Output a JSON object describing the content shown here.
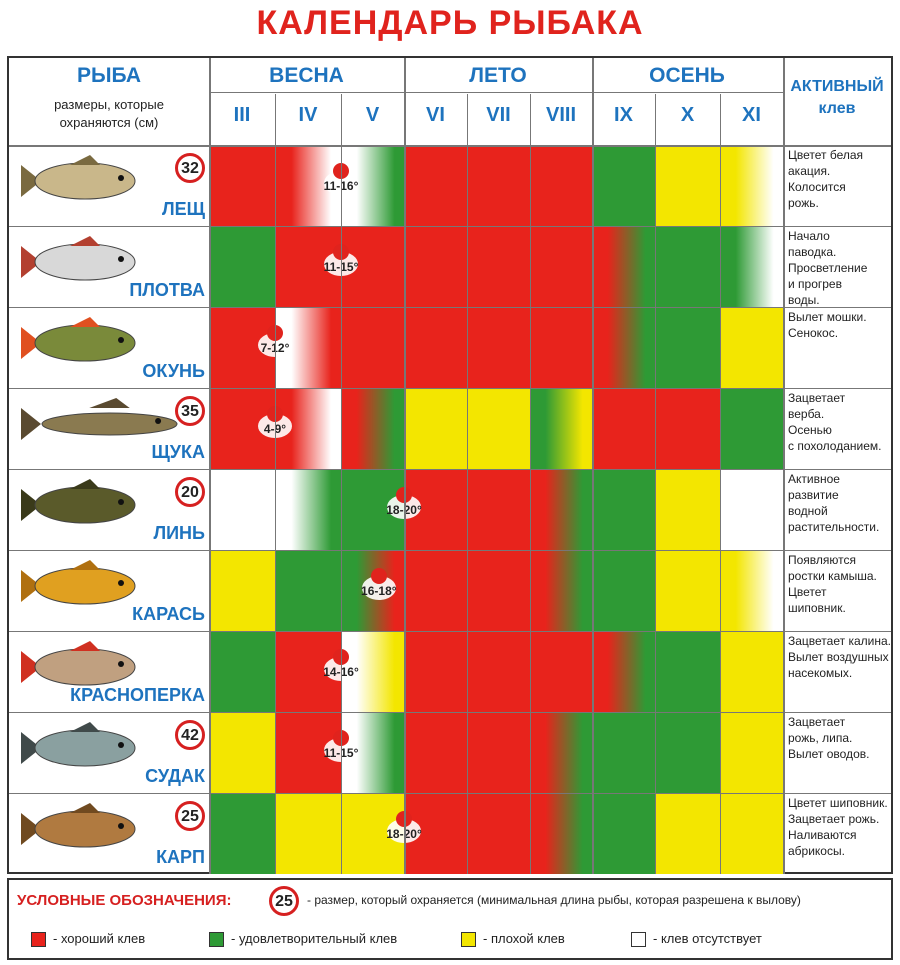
{
  "title": "КАЛЕНДАРЬ РЫБАКА",
  "header": {
    "fish": "РЫБА",
    "sizes": "размеры, которые охраняются (см)",
    "active": "АКТИВНЫЙ клев",
    "seasons": [
      "ВЕСНА",
      "ЛЕТО",
      "ОСЕНЬ"
    ],
    "months": [
      "III",
      "IV",
      "V",
      "VI",
      "VII",
      "VIII",
      "IX",
      "X",
      "XI"
    ]
  },
  "colors": {
    "good": "#e8231c",
    "satisfactory": "#2e9a35",
    "poor": "#f3e600",
    "none": "#ffffff"
  },
  "fish": [
    {
      "name": "ЛЕЩ",
      "limit": "32",
      "temp": "11-16°",
      "marker_month": 2.0,
      "icon": "bream-icon",
      "bite": [
        "good",
        "good>none",
        "none>satisfactory",
        "good",
        "good",
        "good>good",
        "satisfactory",
        "poor",
        "poor>none"
      ],
      "note": "Цветет белая\nакация.\nКолосится\nрожь."
    },
    {
      "name": "ПЛОТВА",
      "limit": "",
      "temp": "11-15°",
      "marker_month": 2.0,
      "icon": "roach-icon",
      "bite": [
        "satisfactory",
        "good",
        "good",
        "good",
        "good",
        "good",
        "good>satisfactory",
        "satisfactory",
        "satisfactory>none"
      ],
      "note": "Начало\nпаводка.\nПросветление\nи прогрев\nводы."
    },
    {
      "name": "ОКУНЬ",
      "limit": "",
      "temp": "7-12°",
      "marker_month": 1.0,
      "icon": "perch-icon",
      "bite": [
        "good",
        "none>good",
        "good",
        "good",
        "good",
        "good",
        "good>satisfactory",
        "satisfactory",
        "poor"
      ],
      "note": "Вылет мошки.\nСенокос."
    },
    {
      "name": "ЩУКА",
      "limit": "35",
      "temp": "4-9°",
      "marker_month": 1.0,
      "icon": "pike-icon",
      "bite": [
        "good",
        "good>none",
        "good>satisfactory",
        "poor",
        "poor",
        "satisfactory>poor",
        "good",
        "good",
        "satisfactory"
      ],
      "note": "Зацветает\nверба.\nОсенью\nс похолоданием."
    },
    {
      "name": "ЛИНЬ",
      "limit": "20",
      "temp": "18-20°",
      "marker_month": 3.0,
      "icon": "tench-icon",
      "bite": [
        "none",
        "none>satisfactory",
        "satisfactory",
        "good",
        "good",
        "good>satisfactory",
        "satisfactory",
        "poor",
        "none"
      ],
      "note": "Активное\nразвитие\nводной\nрастительности."
    },
    {
      "name": "КАРАСЬ",
      "limit": "",
      "temp": "16-18°",
      "marker_month": 2.6,
      "icon": "crucian-icon",
      "bite": [
        "poor",
        "satisfactory",
        "satisfactory>good",
        "good",
        "good",
        "good>satisfactory",
        "satisfactory",
        "poor",
        "poor>none"
      ],
      "note": "Появляются\nростки камыша.\nЦветет\nшиповник."
    },
    {
      "name": "КРАСНОПЕРКА",
      "limit": "",
      "temp": "14-16°",
      "marker_month": 2.0,
      "icon": "rudd-icon",
      "bite": [
        "satisfactory",
        "good",
        "none>poor",
        "good",
        "good",
        "good",
        "good>satisfactory",
        "satisfactory",
        "poor"
      ],
      "note": "Зацветает калина.\nВылет воздушных\nнасекомых."
    },
    {
      "name": "СУДАК",
      "limit": "42",
      "temp": "11-15°",
      "marker_month": 2.0,
      "icon": "zander-icon",
      "bite": [
        "poor",
        "good",
        "none>satisfactory",
        "good",
        "good",
        "good>satisfactory",
        "satisfactory",
        "satisfactory",
        "poor"
      ],
      "note": "Зацветает\nрожь, липа.\nВылет оводов."
    },
    {
      "name": "КАРП",
      "limit": "25",
      "temp": "18-20°",
      "marker_month": 3.0,
      "icon": "carp-icon",
      "bite": [
        "satisfactory",
        "poor",
        "poor",
        "good",
        "good",
        "good>satisfactory",
        "satisfactory",
        "poor",
        "poor"
      ],
      "note": "Цветет шиповник.\nЗацветает рожь.\nНаливаются\nабрикосы."
    }
  ],
  "legend": {
    "title": "УСЛОВНЫЕ ОБОЗНАЧЕНИЯ:",
    "sample": "25",
    "sample_text": "- размер, который охраняется (минимальная длина рыбы, которая разрешена к вылову)",
    "good": "- хороший клев",
    "satisfactory": "- удовлетворительный клев",
    "poor": "- плохой клев",
    "none": "- клев отсутствует"
  }
}
